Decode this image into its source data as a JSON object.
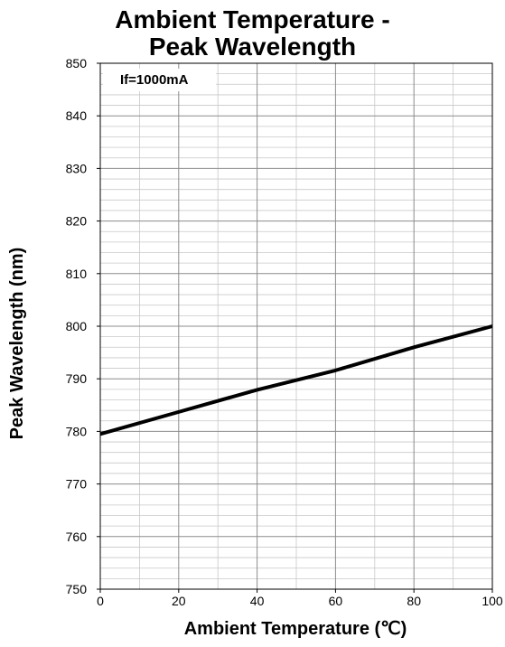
{
  "chart_data": {
    "type": "line",
    "title_line1": "Ambient Temperature -",
    "title_line2": "Peak Wavelength",
    "xlabel": "Ambient Temperature (℃)",
    "ylabel": "Peak Wavelength (nm)",
    "annotation": "If=1000mA",
    "xlim": [
      0,
      100
    ],
    "ylim": [
      750,
      850
    ],
    "x_ticks": [
      0,
      20,
      40,
      60,
      80,
      100
    ],
    "y_ticks": [
      750,
      760,
      770,
      780,
      790,
      800,
      810,
      820,
      830,
      840,
      850
    ],
    "grid": true,
    "series": [
      {
        "x": [
          0,
          20,
          40,
          60,
          80,
          100
        ],
        "y": [
          779.5,
          783.7,
          787.9,
          791.6,
          796.0,
          800.0
        ],
        "color": "#000000"
      }
    ]
  }
}
